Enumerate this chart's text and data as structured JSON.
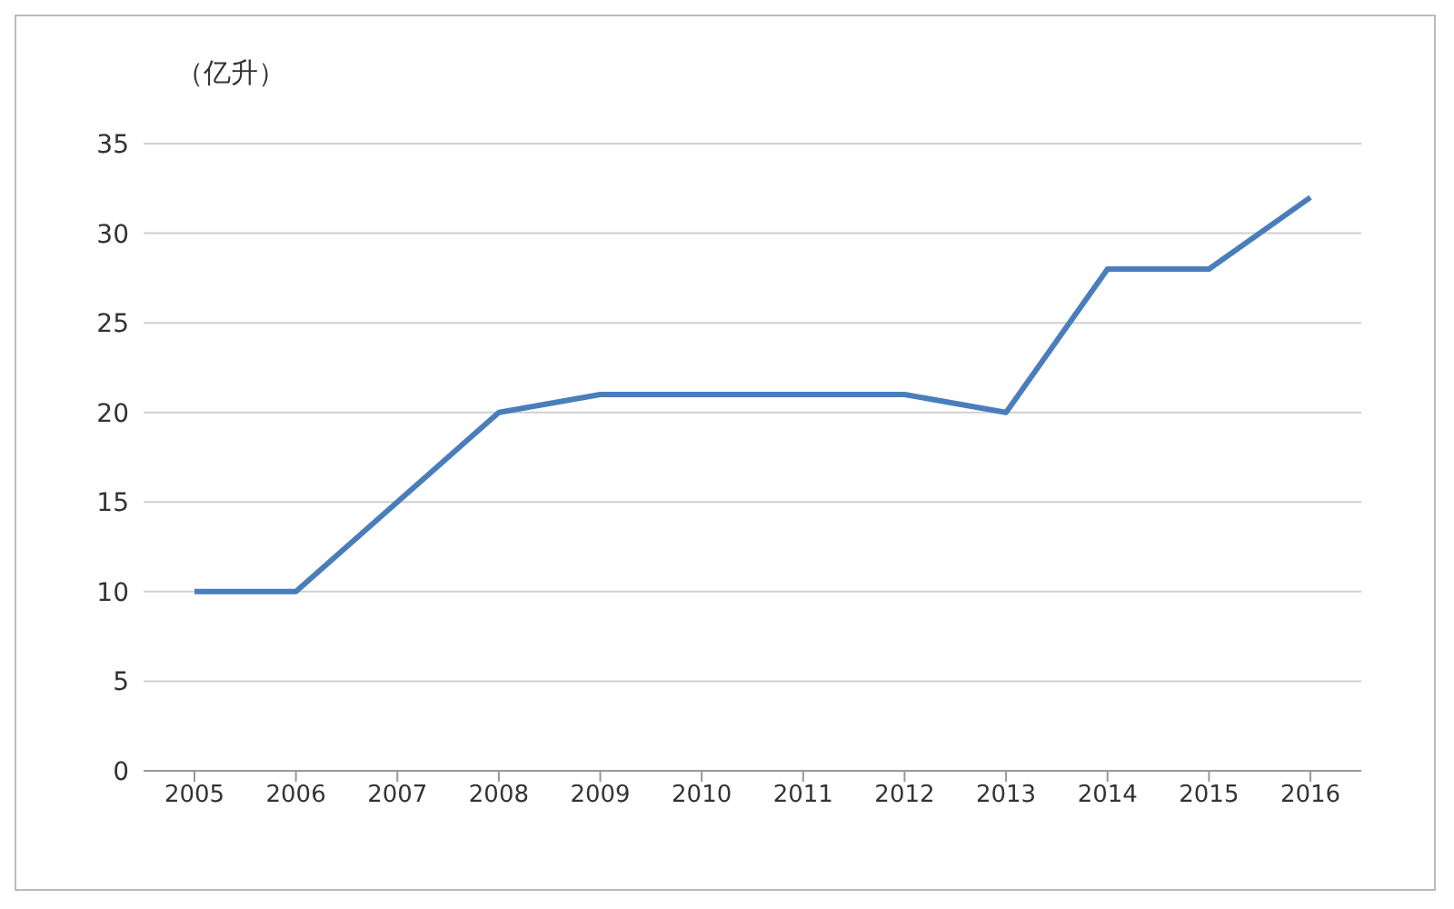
{
  "chart_data": {
    "type": "line",
    "ylabel": "（亿升）",
    "categories": [
      "2005",
      "2006",
      "2007",
      "2008",
      "2009",
      "2010",
      "2011",
      "2012",
      "2013",
      "2014",
      "2015",
      "2016"
    ],
    "series": [
      {
        "color": "#4a7ebb",
        "values": [
          10,
          10,
          15,
          20,
          21,
          21,
          21,
          21,
          20,
          28,
          28,
          32
        ]
      }
    ],
    "ylim": [
      0,
      35
    ],
    "yticks": [
      0,
      5,
      10,
      15,
      20,
      25,
      30,
      35
    ],
    "grid": "y",
    "legend": false,
    "marker": "none",
    "line_style": "solid"
  }
}
